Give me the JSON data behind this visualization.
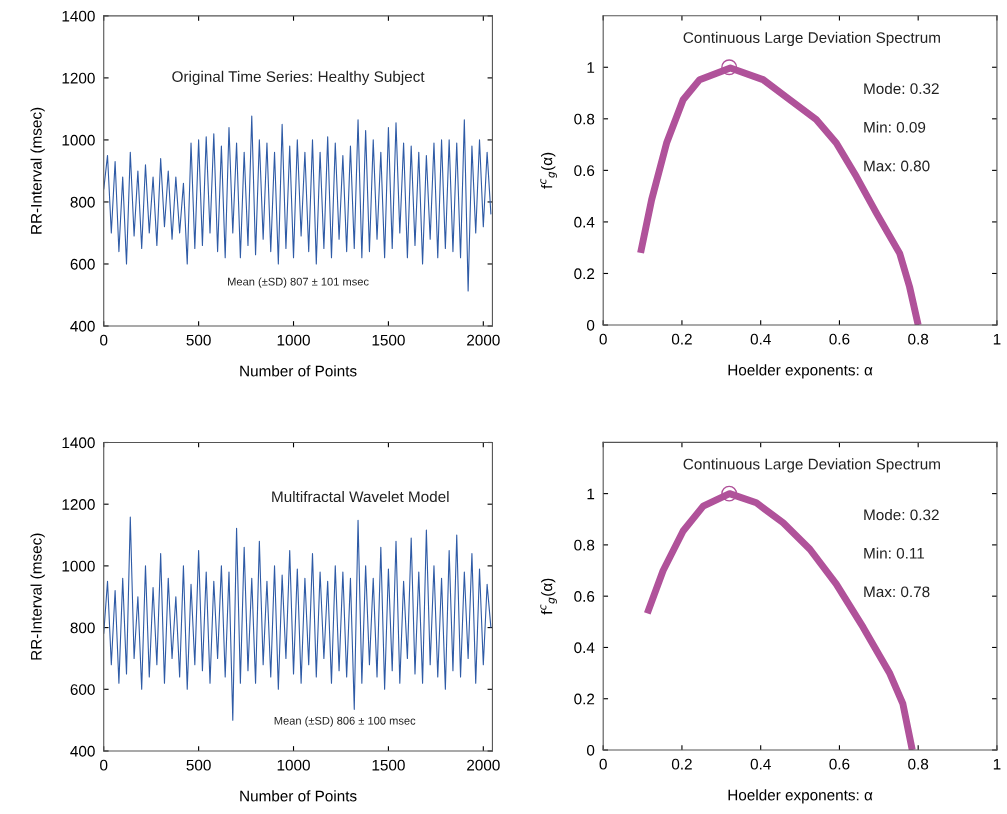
{
  "chart_data": [
    {
      "type": "line",
      "xlabel": "Number of Points",
      "ylabel": "RR-Interval (msec)",
      "xlim": [
        0,
        2048
      ],
      "ylim": [
        400,
        1400
      ],
      "xticks": [
        0,
        500,
        1000,
        1500,
        2000
      ],
      "yticks": [
        400,
        600,
        800,
        1000,
        1200,
        1400
      ],
      "grid": false,
      "legend": false,
      "annotations": [
        "Original Time Series: Healthy Subject",
        "Mean (±SD) 807 ± 101 msec"
      ],
      "series": [
        {
          "color": "#2f5ba6",
          "x": [
            0,
            20,
            40,
            60,
            80,
            100,
            120,
            140,
            160,
            180,
            200,
            220,
            240,
            260,
            280,
            300,
            320,
            340,
            360,
            380,
            400,
            420,
            440,
            460,
            480,
            500,
            520,
            540,
            560,
            580,
            600,
            620,
            640,
            660,
            680,
            700,
            720,
            740,
            760,
            780,
            800,
            820,
            840,
            860,
            880,
            900,
            920,
            940,
            960,
            980,
            1000,
            1020,
            1040,
            1060,
            1080,
            1100,
            1120,
            1140,
            1160,
            1180,
            1200,
            1220,
            1240,
            1260,
            1280,
            1300,
            1320,
            1340,
            1360,
            1380,
            1400,
            1420,
            1440,
            1460,
            1480,
            1500,
            1520,
            1540,
            1560,
            1580,
            1600,
            1620,
            1640,
            1660,
            1680,
            1700,
            1720,
            1740,
            1760,
            1780,
            1800,
            1820,
            1840,
            1860,
            1880,
            1900,
            1920,
            1940,
            1960,
            1980,
            2000,
            2020,
            2040
          ],
          "values": [
            840,
            950,
            700,
            930,
            640,
            880,
            600,
            960,
            690,
            900,
            650,
            920,
            700,
            880,
            660,
            940,
            720,
            900,
            680,
            880,
            700,
            860,
            600,
            990,
            650,
            1000,
            660,
            1010,
            700,
            1020,
            640,
            980,
            620,
            1040,
            700,
            990,
            620,
            960,
            660,
            1077,
            630,
            1000,
            680,
            990,
            640,
            960,
            600,
            1050,
            650,
            980,
            620,
            1000,
            690,
            960,
            640,
            1000,
            600,
            960,
            650,
            1010,
            620,
            990,
            680,
            950,
            640,
            980,
            650,
            1065,
            620,
            1030,
            640,
            1000,
            680,
            960,
            620,
            1040,
            650,
            1055,
            700,
            990,
            620,
            980,
            660,
            960,
            600,
            950,
            680,
            990,
            620,
            1000,
            650,
            1000,
            640,
            990,
            620,
            1065,
            513,
            980,
            700,
            1000,
            720,
            960,
            760
          ]
        }
      ]
    },
    {
      "type": "line",
      "xlabel": "Hoelder exponents: α",
      "ylabel": "f$^{c}$$_{g}$(α)",
      "xlim": [
        0,
        1
      ],
      "ylim": [
        0,
        1.2
      ],
      "xticks": [
        0,
        0.2,
        0.4,
        0.6,
        0.8,
        1
      ],
      "yticks": [
        0,
        0.2,
        0.4,
        0.6,
        0.8,
        1
      ],
      "grid": false,
      "legend": false,
      "annotations": [
        "Continuous Large Deviation Spectrum",
        "Mode: 0.32",
        "Min: 0.09",
        "Max: 0.80"
      ],
      "series": [
        {
          "type": "line",
          "color": "#b0529a",
          "x": [
            0.095,
            0.123,
            0.161,
            0.203,
            0.245,
            0.323,
            0.406,
            0.474,
            0.541,
            0.592,
            0.643,
            0.694,
            0.753,
            0.778,
            0.8
          ],
          "values": [
            0.28,
            0.486,
            0.706,
            0.874,
            0.952,
            0.997,
            0.952,
            0.874,
            0.797,
            0.706,
            0.576,
            0.434,
            0.278,
            0.149,
            0
          ]
        },
        {
          "type": "scatter",
          "color": "#b0529a",
          "marker": "circle",
          "x": [
            0.32
          ],
          "values": [
            1
          ]
        }
      ]
    },
    {
      "type": "line",
      "xlabel": "Number of Points",
      "ylabel": "RR-Interval (msec)",
      "xlim": [
        0,
        2048
      ],
      "ylim": [
        400,
        1400
      ],
      "xticks": [
        0,
        500,
        1000,
        1500,
        2000
      ],
      "yticks": [
        400,
        600,
        800,
        1000,
        1200,
        1400
      ],
      "grid": false,
      "legend": false,
      "annotations": [
        "Multifractal Wavelet Model",
        "Mean (±SD) 806 ± 100 msec"
      ],
      "series": [
        {
          "color": "#2f5ba6",
          "x": [
            0,
            20,
            40,
            60,
            80,
            100,
            120,
            140,
            160,
            180,
            200,
            220,
            240,
            260,
            280,
            300,
            320,
            340,
            360,
            380,
            400,
            420,
            440,
            460,
            480,
            500,
            520,
            540,
            560,
            580,
            600,
            620,
            640,
            660,
            680,
            700,
            720,
            740,
            760,
            780,
            800,
            820,
            840,
            860,
            880,
            900,
            920,
            940,
            960,
            980,
            1000,
            1020,
            1040,
            1060,
            1080,
            1100,
            1120,
            1140,
            1160,
            1180,
            1200,
            1220,
            1240,
            1260,
            1280,
            1300,
            1320,
            1340,
            1360,
            1380,
            1400,
            1420,
            1440,
            1460,
            1480,
            1500,
            1520,
            1540,
            1560,
            1580,
            1600,
            1620,
            1640,
            1660,
            1680,
            1700,
            1720,
            1740,
            1760,
            1780,
            1800,
            1820,
            1840,
            1860,
            1880,
            1900,
            1920,
            1940,
            1960,
            1980,
            2000,
            2020,
            2040
          ],
          "values": [
            780,
            950,
            680,
            920,
            620,
            960,
            650,
            1158,
            700,
            900,
            600,
            1000,
            640,
            930,
            680,
            1040,
            620,
            960,
            700,
            900,
            640,
            1000,
            600,
            940,
            680,
            1050,
            660,
            980,
            620,
            950,
            700,
            1000,
            640,
            980,
            500,
            1122,
            620,
            1060,
            660,
            960,
            620,
            1080,
            680,
            950,
            640,
            1000,
            600,
            970,
            700,
            1050,
            650,
            990,
            620,
            960,
            680,
            1040,
            640,
            980,
            700,
            950,
            620,
            1000,
            660,
            980,
            640,
            960,
            535,
            1148,
            620,
            1000,
            680,
            960,
            640,
            1060,
            600,
            990,
            660,
            1080,
            620,
            950,
            700,
            1090,
            650,
            980,
            620,
            1116,
            680,
            1000,
            640,
            960,
            600,
            1050,
            660,
            1100,
            640,
            980,
            700,
            1040,
            620,
            990,
            680,
            940,
            800
          ]
        }
      ]
    },
    {
      "type": "line",
      "xlabel": "Hoelder exponents: α",
      "ylabel": "f$^{c}$$_{g}$(α)",
      "xlim": [
        0,
        1
      ],
      "ylim": [
        0,
        1.2
      ],
      "xticks": [
        0,
        0.2,
        0.4,
        0.6,
        0.8,
        1
      ],
      "yticks": [
        0,
        0.2,
        0.4,
        0.6,
        0.8,
        1
      ],
      "grid": false,
      "legend": false,
      "annotations": [
        "Continuous Large Deviation Spectrum",
        "Mode: 0.32",
        "Min: 0.11",
        "Max: 0.78"
      ],
      "series": [
        {
          "type": "line",
          "color": "#b0529a",
          "x": [
            0.112,
            0.152,
            0.203,
            0.254,
            0.321,
            0.389,
            0.457,
            0.525,
            0.592,
            0.66,
            0.728,
            0.761,
            0.785
          ],
          "values": [
            0.533,
            0.699,
            0.854,
            0.951,
            1.0,
            0.964,
            0.886,
            0.783,
            0.647,
            0.479,
            0.298,
            0.181,
            0
          ]
        },
        {
          "type": "scatter",
          "color": "#b0529a",
          "marker": "circle",
          "x": [
            0.32
          ],
          "values": [
            1
          ]
        }
      ]
    }
  ]
}
